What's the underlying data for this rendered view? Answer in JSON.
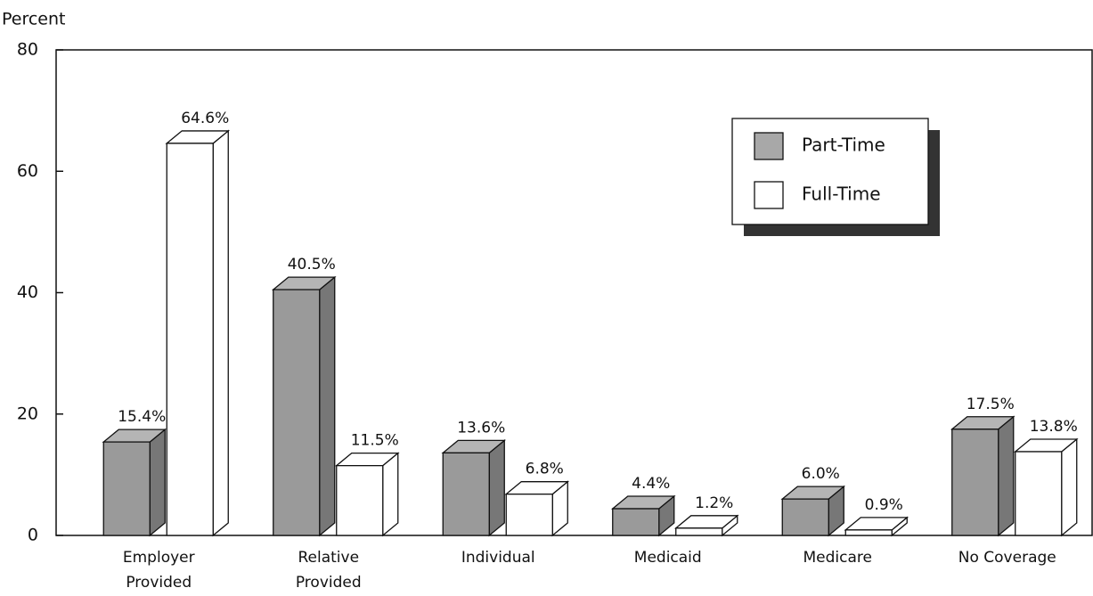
{
  "chart_data": {
    "type": "bar3d",
    "y_axis_label": "Percent",
    "categories": [
      "Employer Provided",
      "Relative Provided",
      "Individual",
      "Medicaid",
      "Medicare",
      "No Coverage"
    ],
    "series": [
      {
        "name": "Part-Time",
        "color": "#9a9a9a",
        "values": [
          15.4,
          40.5,
          13.6,
          4.4,
          6.0,
          17.5
        ],
        "value_labels": [
          "15.4%",
          "40.5%",
          "13.6%",
          "4.4%",
          "6.0%",
          "17.5%"
        ]
      },
      {
        "name": "Full-Time",
        "color": "#ffffff",
        "values": [
          64.6,
          11.5,
          6.8,
          1.2,
          0.9,
          13.8
        ],
        "value_labels": [
          "64.6%",
          "11.5%",
          "6.8%",
          "1.2%",
          "0.9%",
          "13.8%"
        ]
      }
    ],
    "ylim": [
      0,
      80
    ],
    "yticks": [
      0,
      20,
      40,
      60,
      80
    ],
    "legend": "upper right"
  }
}
